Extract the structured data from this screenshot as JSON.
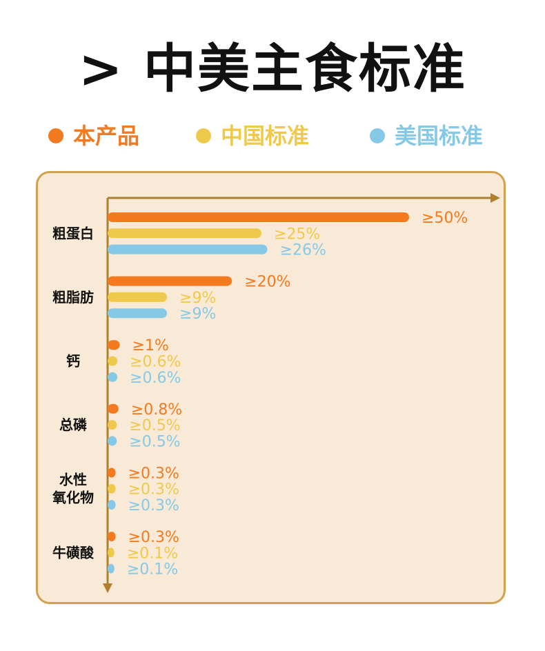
{
  "title": "> 中美主食标准",
  "legend": [
    {
      "label": "本产品",
      "color": "#f47a20"
    },
    {
      "label": "中国标准",
      "color": "#efc94c"
    },
    {
      "label": "美国标准",
      "color": "#86c9e6"
    }
  ],
  "chart_data": {
    "type": "bar",
    "orientation": "horizontal",
    "categories": [
      "粗蛋白",
      "粗脂肪",
      "钙",
      "总磷",
      "水性\n氧化物",
      "牛磺酸"
    ],
    "series": [
      {
        "name": "本产品",
        "color": "#f47a20",
        "values": [
          50,
          20,
          1,
          0.8,
          0.3,
          0.3
        ],
        "labels": [
          "≥50%",
          "≥20%",
          "≥1%",
          "≥0.8%",
          "≥0.3%",
          "≥0.3%"
        ]
      },
      {
        "name": "中国标准",
        "color": "#efc94c",
        "values": [
          25,
          9,
          0.6,
          0.5,
          0.3,
          0.1
        ],
        "labels": [
          "≥25%",
          "≥9%",
          "≥0.6%",
          "≥0.5%",
          "≥0.3%",
          "≥0.1%"
        ]
      },
      {
        "name": "美国标准",
        "color": "#86c9e6",
        "values": [
          26,
          9,
          0.6,
          0.5,
          0.3,
          0.1
        ],
        "labels": [
          "≥26%",
          "≥9%",
          "≥0.6%",
          "≥0.5%",
          "≥0.3%",
          "≥0.1%"
        ]
      }
    ],
    "axis_color": "#b07f2c",
    "grid": false
  }
}
